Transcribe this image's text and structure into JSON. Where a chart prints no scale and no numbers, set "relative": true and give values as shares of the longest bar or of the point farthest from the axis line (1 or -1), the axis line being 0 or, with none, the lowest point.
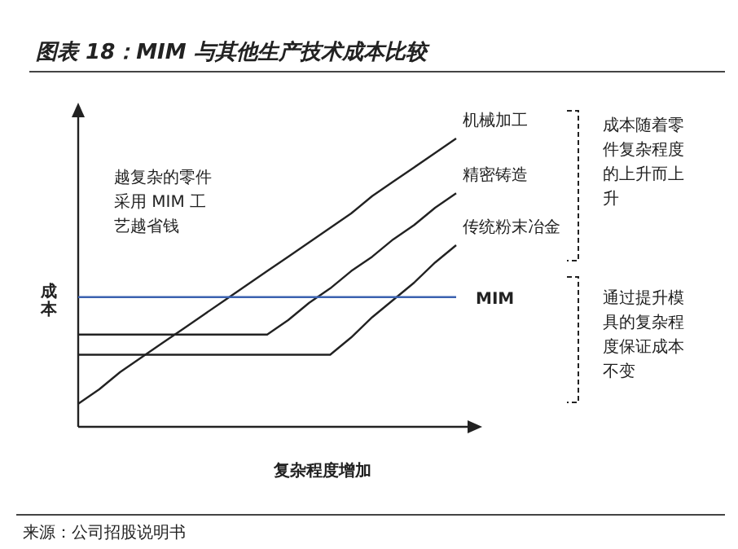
{
  "chart_data": {
    "type": "line",
    "title": "图表 18：MIM 与其他生产技术成本比较",
    "xlabel": "复杂程度增加",
    "ylabel": "成本",
    "relative": true,
    "legend": false,
    "marker": "none",
    "line_style": "solid",
    "categories": [
      null,
      null,
      null,
      null,
      null,
      null,
      null,
      null,
      null,
      null,
      null,
      null,
      null,
      null,
      null,
      null,
      null,
      null,
      null
    ],
    "series": [
      {
        "name": "机械加工",
        "color": "#222222",
        "values": [
          0.08,
          0.13,
          0.19,
          0.24,
          0.29,
          0.34,
          0.39,
          0.44,
          0.49,
          0.54,
          0.59,
          0.64,
          0.69,
          0.74,
          0.8,
          0.85,
          0.9,
          0.95,
          1.0
        ]
      },
      {
        "name": "精密铸造",
        "color": "#222222",
        "values": [
          0.32,
          0.32,
          0.32,
          0.32,
          0.32,
          0.32,
          0.32,
          0.32,
          0.32,
          0.32,
          0.37,
          0.43,
          0.48,
          0.54,
          0.59,
          0.65,
          0.7,
          0.76,
          0.81
        ]
      },
      {
        "name": "传统粉末冶金",
        "color": "#222222",
        "values": [
          0.25,
          0.25,
          0.25,
          0.25,
          0.25,
          0.25,
          0.25,
          0.25,
          0.25,
          0.25,
          0.25,
          0.25,
          0.25,
          0.31,
          0.38,
          0.44,
          0.5,
          0.57,
          0.63
        ]
      },
      {
        "name": "MIM",
        "color": "#3b62b0",
        "values": [
          0.45,
          0.45,
          0.45,
          0.45,
          0.45,
          0.45,
          0.45,
          0.45,
          0.45,
          0.45,
          0.45,
          0.45,
          0.45,
          0.45,
          0.45,
          0.45,
          0.45,
          0.45,
          0.45
        ]
      }
    ],
    "annotations": [
      "越复杂的零件采用 MIM 工艺越省钱",
      "成本随着零件复杂程度的上升而上升",
      "通过提升模具的复杂程度保证成本不变",
      "来源：公司招股说明书"
    ]
  }
}
